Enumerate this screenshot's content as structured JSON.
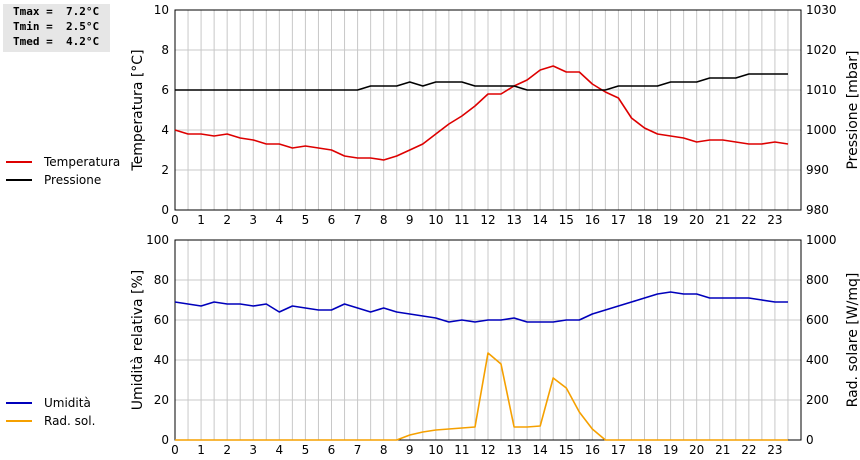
{
  "stats": {
    "tmax": "Tmax =  7.2°C",
    "tmin": "Tmin =  2.5°C",
    "tmed": "Tmed =  4.2°C"
  },
  "legend_top": [
    {
      "label": "Temperatura",
      "color": "#dd0000"
    },
    {
      "label": "Pressione",
      "color": "#000000"
    }
  ],
  "legend_bottom": [
    {
      "label": "Umidità",
      "color": "#0000bb"
    },
    {
      "label": "Rad. sol.",
      "color": "#f5a000"
    }
  ],
  "chart_data": [
    {
      "type": "line",
      "ylabel": "Temperatura [°C]",
      "y2label": "Pressione [mbar]",
      "ylim": [
        0,
        10
      ],
      "yticks": [
        0,
        2,
        4,
        6,
        8,
        10
      ],
      "y2lim": [
        980,
        1030
      ],
      "y2ticks": [
        980,
        990,
        1000,
        1010,
        1020,
        1030
      ],
      "xlim": [
        0,
        24
      ],
      "xticks": [
        0,
        1,
        2,
        3,
        4,
        5,
        6,
        7,
        8,
        9,
        10,
        11,
        12,
        13,
        14,
        15,
        16,
        17,
        18,
        19,
        20,
        21,
        22,
        23
      ],
      "grid": true,
      "series": [
        {
          "name": "Temperatura",
          "axis": "left",
          "color": "#dd0000",
          "x": [
            0,
            0.5,
            1,
            1.5,
            2,
            2.5,
            3,
            3.5,
            4,
            4.5,
            5,
            5.5,
            6,
            6.5,
            7,
            7.5,
            8,
            8.5,
            9,
            9.5,
            10,
            10.5,
            11,
            11.5,
            12,
            12.5,
            13,
            13.5,
            14,
            14.5,
            15,
            15.5,
            16,
            16.5,
            17,
            17.5,
            18,
            18.5,
            19,
            19.5,
            20,
            20.5,
            21,
            21.5,
            22,
            22.5,
            23,
            23.5
          ],
          "y": [
            4.0,
            3.8,
            3.8,
            3.7,
            3.8,
            3.6,
            3.5,
            3.3,
            3.3,
            3.1,
            3.2,
            3.1,
            3.0,
            2.7,
            2.6,
            2.6,
            2.5,
            2.7,
            3.0,
            3.3,
            3.8,
            4.3,
            4.7,
            5.2,
            5.8,
            5.8,
            6.2,
            6.5,
            7.0,
            7.2,
            6.9,
            6.9,
            6.3,
            5.9,
            5.6,
            4.6,
            4.1,
            3.8,
            3.7,
            3.6,
            3.4,
            3.5,
            3.5,
            3.4,
            3.3,
            3.3,
            3.4,
            3.3
          ]
        },
        {
          "name": "Pressione",
          "axis": "right",
          "color": "#000000",
          "x": [
            0,
            0.5,
            1,
            1.5,
            2,
            2.5,
            3,
            3.5,
            4,
            4.5,
            5,
            5.5,
            6,
            6.5,
            7,
            7.5,
            8,
            8.5,
            9,
            9.5,
            10,
            10.5,
            11,
            11.5,
            12,
            12.5,
            13,
            13.5,
            14,
            14.5,
            15,
            15.5,
            16,
            16.5,
            17,
            17.5,
            18,
            18.5,
            19,
            19.5,
            20,
            20.5,
            21,
            21.5,
            22,
            22.5,
            23,
            23.5
          ],
          "y": [
            1010,
            1010,
            1010,
            1010,
            1010,
            1010,
            1010,
            1010,
            1010,
            1010,
            1010,
            1010,
            1010,
            1010,
            1010,
            1011,
            1011,
            1011,
            1012,
            1011,
            1012,
            1012,
            1012,
            1011,
            1011,
            1011,
            1011,
            1010,
            1010,
            1010,
            1010,
            1010,
            1010,
            1010,
            1011,
            1011,
            1011,
            1011,
            1012,
            1012,
            1012,
            1013,
            1013,
            1013,
            1014,
            1014,
            1014,
            1014
          ]
        }
      ]
    },
    {
      "type": "line",
      "ylabel": "Umidità relativa [%]",
      "y2label": "Rad. solare [W/mq]",
      "ylim": [
        0,
        100
      ],
      "yticks": [
        0,
        20,
        40,
        60,
        80,
        100
      ],
      "y2lim": [
        0,
        1000
      ],
      "y2ticks": [
        0,
        200,
        400,
        600,
        800,
        1000
      ],
      "xlim": [
        0,
        24
      ],
      "xticks": [
        0,
        1,
        2,
        3,
        4,
        5,
        6,
        7,
        8,
        9,
        10,
        11,
        12,
        13,
        14,
        15,
        16,
        17,
        18,
        19,
        20,
        21,
        22,
        23
      ],
      "grid": true,
      "series": [
        {
          "name": "Umidità",
          "axis": "left",
          "color": "#0000bb",
          "x": [
            0,
            0.5,
            1,
            1.5,
            2,
            2.5,
            3,
            3.5,
            4,
            4.5,
            5,
            5.5,
            6,
            6.5,
            7,
            7.5,
            8,
            8.5,
            9,
            9.5,
            10,
            10.5,
            11,
            11.5,
            12,
            12.5,
            13,
            13.5,
            14,
            14.5,
            15,
            15.5,
            16,
            16.5,
            17,
            17.5,
            18,
            18.5,
            19,
            19.5,
            20,
            20.5,
            21,
            21.5,
            22,
            22.5,
            23,
            23.5
          ],
          "y": [
            69,
            68,
            67,
            69,
            68,
            68,
            67,
            68,
            64,
            67,
            66,
            65,
            65,
            68,
            66,
            64,
            66,
            64,
            63,
            62,
            61,
            59,
            60,
            59,
            60,
            60,
            61,
            59,
            59,
            59,
            60,
            60,
            63,
            65,
            67,
            69,
            71,
            73,
            74,
            73,
            73,
            71,
            71,
            71,
            71,
            70,
            69,
            69
          ]
        },
        {
          "name": "Rad. sol.",
          "axis": "right",
          "color": "#f5a000",
          "x": [
            0,
            1,
            2,
            3,
            4,
            5,
            6,
            7,
            8,
            8.5,
            9,
            9.5,
            10,
            10.5,
            11,
            11.5,
            12,
            12.5,
            13,
            13.5,
            14,
            14.5,
            15,
            15.5,
            16,
            16.5,
            17,
            18,
            19,
            20,
            21,
            22,
            23,
            23.5
          ],
          "y": [
            0,
            0,
            0,
            0,
            0,
            0,
            0,
            0,
            0,
            0,
            25,
            40,
            50,
            55,
            60,
            65,
            435,
            380,
            65,
            65,
            70,
            310,
            260,
            140,
            55,
            0,
            0,
            0,
            0,
            0,
            0,
            0,
            0,
            0
          ]
        }
      ]
    }
  ]
}
